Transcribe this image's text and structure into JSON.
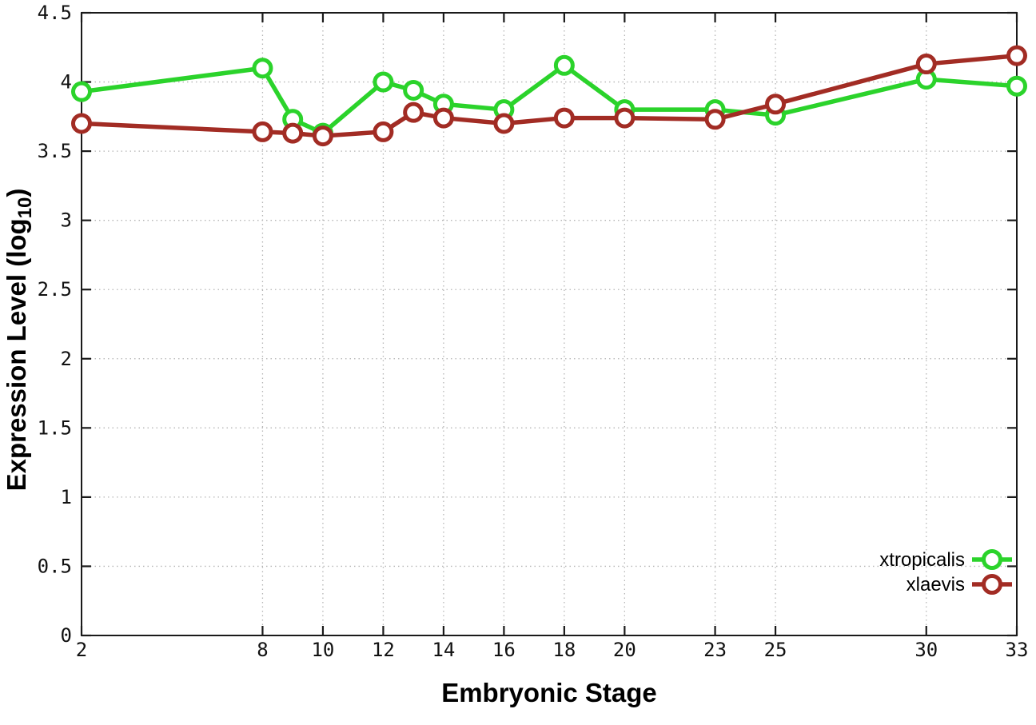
{
  "page": {
    "background": "#ffffff"
  },
  "chart_data": {
    "type": "line",
    "title": "",
    "xlabel": "Embryonic Stage",
    "ylabel": {
      "text": "Expression Level (log10)",
      "main": "Expression Level (log",
      "sub": "10",
      "suffix": ")"
    },
    "x": [
      2,
      8,
      9,
      10,
      12,
      13,
      14,
      16,
      18,
      20,
      23,
      25,
      30,
      33
    ],
    "series": [
      {
        "name": "xtropicalis",
        "color": "#2bd32b",
        "marker": "open-circle",
        "values": [
          3.93,
          4.1,
          3.73,
          3.63,
          4.0,
          3.94,
          3.84,
          3.8,
          4.12,
          3.8,
          3.8,
          3.76,
          4.02,
          3.97
        ]
      },
      {
        "name": "xlaevis",
        "color": "#a22c24",
        "marker": "open-circle",
        "values": [
          3.7,
          3.64,
          3.63,
          3.61,
          3.64,
          3.78,
          3.74,
          3.7,
          3.74,
          3.74,
          3.73,
          3.84,
          4.13,
          4.19
        ]
      }
    ],
    "xticks": [
      2,
      8,
      10,
      12,
      14,
      16,
      18,
      20,
      23,
      25,
      30,
      33
    ],
    "yticks": [
      0,
      0.5,
      1,
      1.5,
      2,
      2.5,
      3,
      3.5,
      4,
      4.5
    ],
    "ytick_labels": [
      "0",
      "0.5",
      "1",
      "1.5",
      "2",
      "2.5",
      "3",
      "3.5",
      "4",
      "4.5"
    ],
    "xlim": [
      2,
      33
    ],
    "ylim": [
      0,
      4.5
    ],
    "grid": true,
    "grid_style": "dotted",
    "legend_position": "inside-bottom-right",
    "axis_color": "#1a1a1a",
    "grid_color": "#b5b5b5",
    "marker_fill": "#ffffff"
  }
}
